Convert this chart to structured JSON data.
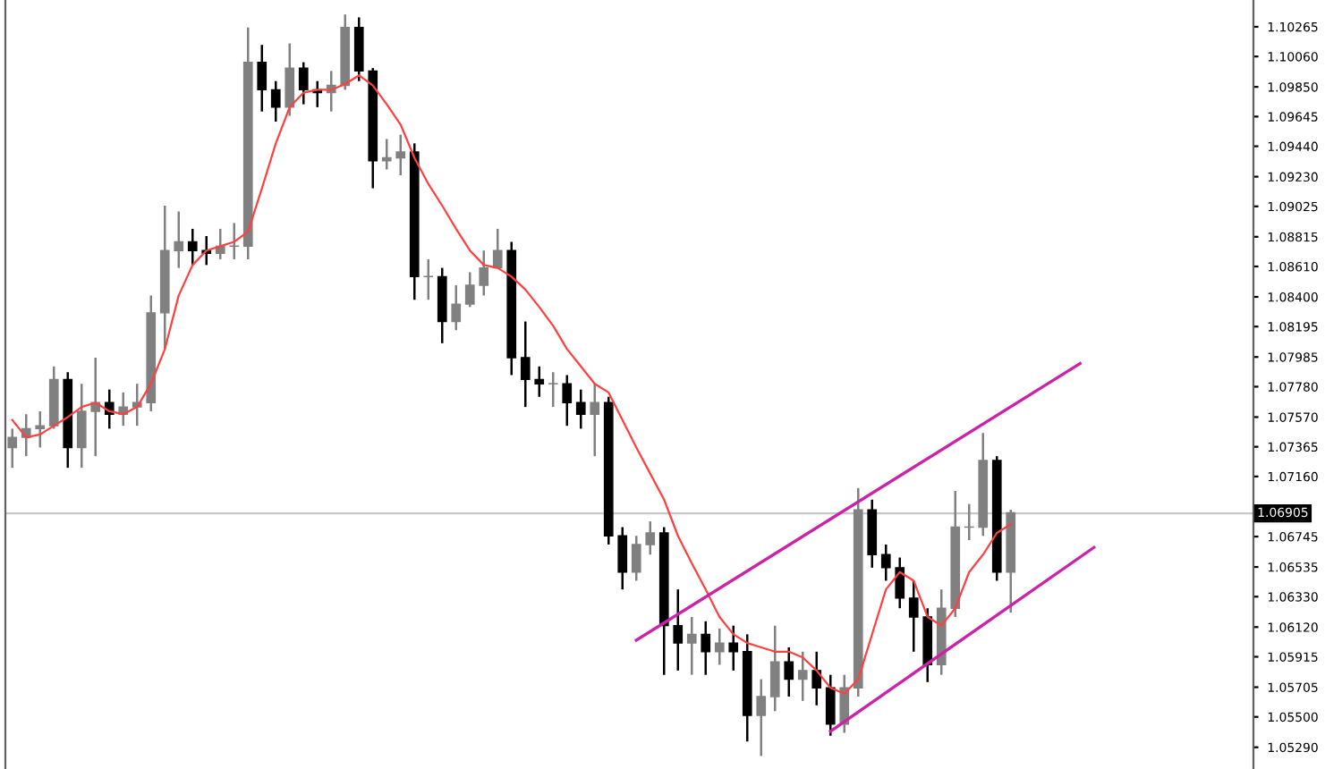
{
  "chart_data": {
    "type": "candlestick",
    "categories": [
      null,
      null,
      null,
      null,
      null,
      null,
      null,
      null,
      null,
      null,
      null,
      null,
      null,
      null,
      null,
      null,
      null,
      null,
      null,
      null,
      null,
      null,
      null,
      null,
      null,
      null,
      null,
      null,
      null,
      null,
      null,
      null,
      null,
      null,
      null,
      null,
      null,
      null,
      null,
      null,
      null,
      null,
      null,
      null,
      null,
      null,
      null,
      null,
      null,
      null,
      null,
      null,
      null,
      null,
      null,
      null,
      null,
      null,
      null,
      null,
      null,
      null,
      null,
      null,
      null,
      null,
      null,
      null,
      null,
      null,
      null,
      null,
      null,
      null,
      null,
      null,
      null,
      null,
      null,
      null,
      null,
      null,
      null,
      null,
      null,
      null,
      null,
      null,
      null,
      null
    ],
    "ohlc": [
      [
        1.0736,
        1.0749,
        1.0722,
        1.0743
      ],
      [
        1.0743,
        1.0759,
        1.073,
        1.0749
      ],
      [
        1.0749,
        1.0761,
        1.0736,
        1.0751
      ],
      [
        1.0751,
        1.0792,
        1.0749,
        1.0783
      ],
      [
        1.0783,
        1.0788,
        1.0722,
        1.0736
      ],
      [
        1.0736,
        1.078,
        1.0722,
        1.0761
      ],
      [
        1.0761,
        1.0798,
        1.073,
        1.0767
      ],
      [
        1.0767,
        1.0776,
        1.0749,
        1.0759
      ],
      [
        1.0759,
        1.0774,
        1.0751,
        1.0764
      ],
      [
        1.0764,
        1.078,
        1.0751,
        1.0767
      ],
      [
        1.0767,
        1.0841,
        1.0761,
        1.0829
      ],
      [
        1.0829,
        1.0903,
        1.0804,
        1.0872
      ],
      [
        1.0872,
        1.0899,
        1.086,
        1.0878
      ],
      [
        1.0878,
        1.0887,
        1.0862,
        1.0872
      ],
      [
        1.0872,
        1.0882,
        1.0862,
        1.087
      ],
      [
        1.087,
        1.0887,
        1.0866,
        1.0875
      ],
      [
        1.0875,
        1.0891,
        1.0866,
        1.0875
      ],
      [
        1.0875,
        1.1026,
        1.0866,
        1.1002
      ],
      [
        1.1002,
        1.1014,
        1.0968,
        1.0983
      ],
      [
        1.0983,
        1.0989,
        1.0961,
        1.0971
      ],
      [
        1.0971,
        1.1015,
        1.0965,
        1.0998
      ],
      [
        1.0998,
        1.1002,
        1.0973,
        1.0983
      ],
      [
        1.0983,
        1.0989,
        1.0971,
        1.0981
      ],
      [
        1.0981,
        1.0996,
        1.0968,
        1.0986
      ],
      [
        1.0986,
        1.1035,
        1.0983,
        1.1026
      ],
      [
        1.1026,
        1.1033,
        1.0989,
        1.0996
      ],
      [
        1.0996,
        1.0998,
        1.0915,
        1.0934
      ],
      [
        1.0934,
        1.0949,
        1.0928,
        1.0936
      ],
      [
        1.0936,
        1.0952,
        1.0924,
        1.094
      ],
      [
        1.094,
        1.0946,
        1.0838,
        1.0854
      ],
      [
        1.0854,
        1.0866,
        1.0838,
        1.0854
      ],
      [
        1.0854,
        1.086,
        1.0808,
        1.0823
      ],
      [
        1.0823,
        1.0848,
        1.0817,
        1.0835
      ],
      [
        1.0835,
        1.0857,
        1.0833,
        1.0848
      ],
      [
        1.0848,
        1.0872,
        1.0841,
        1.086
      ],
      [
        1.086,
        1.0887,
        1.086,
        1.0872
      ],
      [
        1.0872,
        1.0878,
        1.0786,
        1.0798
      ],
      [
        1.0798,
        1.0823,
        1.0764,
        1.0783
      ],
      [
        1.0783,
        1.0792,
        1.0771,
        1.078
      ],
      [
        1.078,
        1.0788,
        1.0764,
        1.078
      ],
      [
        1.078,
        1.0786,
        1.0751,
        1.0767
      ],
      [
        1.0767,
        1.0776,
        1.0749,
        1.0759
      ],
      [
        1.0759,
        1.078,
        1.073,
        1.0767
      ],
      [
        1.0767,
        1.0771,
        1.0669,
        1.0675
      ],
      [
        1.0675,
        1.0681,
        1.0638,
        1.065
      ],
      [
        1.065,
        1.0675,
        1.0644,
        1.0669
      ],
      [
        1.0669,
        1.0685,
        1.0662,
        1.0677
      ],
      [
        1.0677,
        1.0681,
        1.0579,
        1.0613
      ],
      [
        1.0613,
        1.0638,
        1.0582,
        1.0601
      ],
      [
        1.0601,
        1.0619,
        1.0579,
        1.0607
      ],
      [
        1.0607,
        1.0616,
        1.0579,
        1.0595
      ],
      [
        1.0595,
        1.0611,
        1.0586,
        1.0601
      ],
      [
        1.0601,
        1.0613,
        1.0582,
        1.0595
      ],
      [
        1.0595,
        1.0607,
        1.0533,
        1.0551
      ],
      [
        1.0551,
        1.0576,
        1.0523,
        1.0564
      ],
      [
        1.0564,
        1.0613,
        1.0554,
        1.0588
      ],
      [
        1.0588,
        1.0598,
        1.0564,
        1.0576
      ],
      [
        1.0576,
        1.0595,
        1.0561,
        1.0582
      ],
      [
        1.0582,
        1.0595,
        1.0558,
        1.057
      ],
      [
        1.057,
        1.0579,
        1.0537,
        1.0545
      ],
      [
        1.0545,
        1.0579,
        1.0539,
        1.057
      ],
      [
        1.057,
        1.0708,
        1.0564,
        1.0693
      ],
      [
        1.0693,
        1.07,
        1.0653,
        1.0662
      ],
      [
        1.0662,
        1.0669,
        1.0644,
        1.0653
      ],
      [
        1.0653,
        1.066,
        1.0625,
        1.0632
      ],
      [
        1.0632,
        1.0644,
        1.0595,
        1.0619
      ],
      [
        1.0619,
        1.0625,
        1.0574,
        1.0586
      ],
      [
        1.0586,
        1.0638,
        1.0579,
        1.0625
      ],
      [
        1.0625,
        1.0706,
        1.0619,
        1.0681
      ],
      [
        1.0681,
        1.0697,
        1.0672,
        1.0681
      ],
      [
        1.0681,
        1.0746,
        1.0675,
        1.0727
      ],
      [
        1.0727,
        1.073,
        1.0644,
        1.065
      ],
      [
        1.065,
        1.0693,
        1.0622,
        1.0691
      ],
      null,
      null,
      null,
      null,
      null,
      null,
      null,
      null,
      null,
      null,
      null,
      null,
      null,
      null,
      null,
      null,
      null
    ],
    "series": [
      {
        "type": "line",
        "color": "#ff4040",
        "values": [
          1.0755,
          1.0743,
          1.0745,
          1.0751,
          1.0757,
          1.0764,
          1.0767,
          1.0761,
          1.0759,
          1.0764,
          1.078,
          1.0804,
          1.0841,
          1.0862,
          1.0872,
          1.0875,
          1.0878,
          1.0885,
          1.0915,
          1.0946,
          1.0971,
          1.0981,
          1.0983,
          1.0983,
          1.0987,
          1.0993,
          1.0986,
          1.0973,
          1.0959,
          1.0936,
          1.0918,
          1.0903,
          1.0887,
          1.0872,
          1.0862,
          1.086,
          1.0854,
          1.0845,
          1.0833,
          1.082,
          1.0804,
          1.0792,
          1.078,
          1.0774,
          1.0755,
          1.0736,
          1.0718,
          1.07,
          1.0675,
          1.0656,
          1.0638,
          1.0619,
          1.0607,
          1.0601,
          1.0598,
          1.0595,
          1.0595,
          1.0591,
          1.0582,
          1.057,
          1.0566,
          1.0576,
          1.0607,
          1.0638,
          1.065,
          1.0644,
          1.0619,
          1.0613,
          1.0625,
          1.065,
          1.0662,
          1.0677,
          1.0683,
          null,
          null,
          null,
          null,
          null,
          null,
          null,
          null,
          null,
          null,
          null,
          null,
          null,
          null,
          null,
          null,
          null
        ]
      },
      {
        "type": "line",
        "color": "#cc22aa",
        "values": [
          null,
          null,
          null,
          null,
          null,
          null,
          null,
          null,
          null,
          null,
          null,
          null,
          null,
          null,
          null,
          null,
          null,
          null,
          null,
          null,
          null,
          null,
          null,
          null,
          null,
          null,
          null,
          null,
          null,
          null,
          null,
          null,
          null,
          null,
          null,
          null,
          null,
          null,
          null,
          null,
          null,
          null,
          null,
          null,
          null,
          1.0603,
          null,
          null,
          null,
          null,
          null,
          null,
          null,
          null,
          null,
          null,
          null,
          null,
          null,
          null,
          null,
          null,
          null,
          null,
          null,
          null,
          null,
          null,
          null,
          null,
          null,
          null,
          null,
          null,
          null,
          null,
          null,
          1.0794,
          null,
          null,
          null,
          null,
          null,
          null,
          null,
          null,
          null,
          null,
          null,
          null
        ]
      },
      {
        "type": "line",
        "color": "#cc22aa",
        "values": [
          null,
          null,
          null,
          null,
          null,
          null,
          null,
          null,
          null,
          null,
          null,
          null,
          null,
          null,
          null,
          null,
          null,
          null,
          null,
          null,
          null,
          null,
          null,
          null,
          null,
          null,
          null,
          null,
          null,
          null,
          null,
          null,
          null,
          null,
          null,
          null,
          null,
          null,
          null,
          null,
          null,
          null,
          null,
          null,
          null,
          null,
          null,
          null,
          null,
          null,
          null,
          null,
          null,
          null,
          null,
          null,
          null,
          null,
          null,
          1.054,
          null,
          null,
          null,
          null,
          null,
          null,
          null,
          null,
          null,
          null,
          null,
          null,
          null,
          null,
          null,
          null,
          null,
          null,
          1.0667,
          null,
          null,
          null,
          null,
          null,
          null,
          null,
          null,
          null,
          null,
          null
        ]
      }
    ],
    "ylim": [
      1.0514,
      1.1045
    ],
    "yticks": [
      {
        "value": 1.10265,
        "label": "1.10265"
      },
      {
        "value": 1.1006,
        "label": "1.10060"
      },
      {
        "value": 1.0985,
        "label": "1.09850"
      },
      {
        "value": 1.09645,
        "label": "1.09645"
      },
      {
        "value": 1.0944,
        "label": "1.09440"
      },
      {
        "value": 1.0923,
        "label": "1.09230"
      },
      {
        "value": 1.09025,
        "label": "1.09025"
      },
      {
        "value": 1.08815,
        "label": "1.08815"
      },
      {
        "value": 1.0861,
        "label": "1.08610"
      },
      {
        "value": 1.084,
        "label": "1.08400"
      },
      {
        "value": 1.08195,
        "label": "1.08195"
      },
      {
        "value": 1.07985,
        "label": "1.07985"
      },
      {
        "value": 1.0778,
        "label": "1.07780"
      },
      {
        "value": 1.0757,
        "label": "1.07570"
      },
      {
        "value": 1.07365,
        "label": "1.07365"
      },
      {
        "value": 1.0716,
        "label": "1.07160"
      },
      {
        "value": 1.06745,
        "label": "1.06745"
      },
      {
        "value": 1.06535,
        "label": "1.06535"
      },
      {
        "value": 1.0633,
        "label": "1.06330"
      },
      {
        "value": 1.0612,
        "label": "1.06120"
      },
      {
        "value": 1.05915,
        "label": "1.05915"
      },
      {
        "value": 1.05705,
        "label": "1.05705"
      },
      {
        "value": 1.055,
        "label": "1.05500"
      },
      {
        "value": 1.0529,
        "label": "1.05290"
      }
    ],
    "ref_lines": [
      {
        "axis": "y",
        "value": 1.06905,
        "label": "1.06905",
        "color": "#c8c8c8"
      }
    ],
    "tick_labels": "y",
    "grid": false,
    "legend": false
  }
}
